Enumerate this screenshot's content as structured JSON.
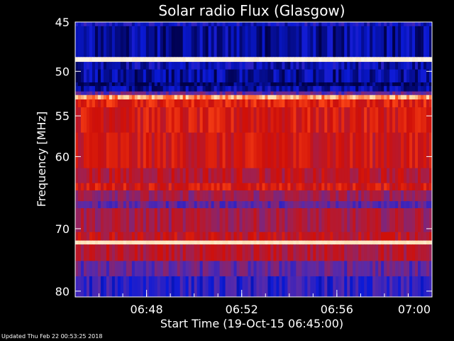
{
  "chart_data": {
    "type": "heatmap",
    "title": "Solar radio Flux (Glasgow)",
    "xlabel": "Start Time (19-Oct-15 06:45:00)",
    "ylabel": "Frequency [MHz]",
    "x_range_minutes": [
      0,
      15
    ],
    "x_tick_minutes": [
      3,
      7,
      11,
      15
    ],
    "x_tick_labels": [
      "06:48",
      "06:52",
      "06:56",
      "07:00"
    ],
    "ylim": [
      45,
      81
    ],
    "y_ticks": [
      45,
      50,
      55,
      60,
      70,
      80
    ],
    "y_tick_labels": [
      "45",
      "50",
      "55",
      "60",
      "70",
      "80"
    ],
    "y_scale": "log",
    "colormap": [
      "#00004a",
      "#0a1ad8",
      "#5a2aa8",
      "#a02050",
      "#d01008",
      "#ff4a18",
      "#ffd8a0",
      "#ffffff"
    ],
    "frequency_bands": [
      {
        "from": 45.0,
        "to": 45.4,
        "level": 0.15
      },
      {
        "from": 45.4,
        "to": 48.5,
        "level": 0.08
      },
      {
        "from": 48.5,
        "to": 49.0,
        "level": 0.95
      },
      {
        "from": 49.0,
        "to": 49.8,
        "level": 0.12
      },
      {
        "from": 49.8,
        "to": 51.2,
        "level": 0.08
      },
      {
        "from": 51.2,
        "to": 51.6,
        "level": 0.02
      },
      {
        "from": 51.6,
        "to": 52.2,
        "level": 0.1
      },
      {
        "from": 52.2,
        "to": 52.6,
        "level": 0.3
      },
      {
        "from": 52.6,
        "to": 53.1,
        "level": 0.8
      },
      {
        "from": 53.1,
        "to": 54.0,
        "level": 0.62
      },
      {
        "from": 54.0,
        "to": 57.0,
        "level": 0.58
      },
      {
        "from": 57.0,
        "to": 61.5,
        "level": 0.56
      },
      {
        "from": 61.5,
        "to": 63.5,
        "level": 0.5
      },
      {
        "from": 63.5,
        "to": 64.5,
        "level": 0.58
      },
      {
        "from": 64.5,
        "to": 66.0,
        "level": 0.42
      },
      {
        "from": 66.0,
        "to": 67.0,
        "level": 0.3
      },
      {
        "from": 67.0,
        "to": 70.5,
        "level": 0.45
      },
      {
        "from": 70.5,
        "to": 71.8,
        "level": 0.52
      },
      {
        "from": 71.8,
        "to": 72.4,
        "level": 0.9
      },
      {
        "from": 72.4,
        "to": 75.0,
        "level": 0.48
      },
      {
        "from": 75.0,
        "to": 77.5,
        "level": 0.3
      },
      {
        "from": 77.5,
        "to": 81.0,
        "level": 0.2
      }
    ]
  },
  "footer": "Updated Thu Feb 22 00:53:25 2018"
}
